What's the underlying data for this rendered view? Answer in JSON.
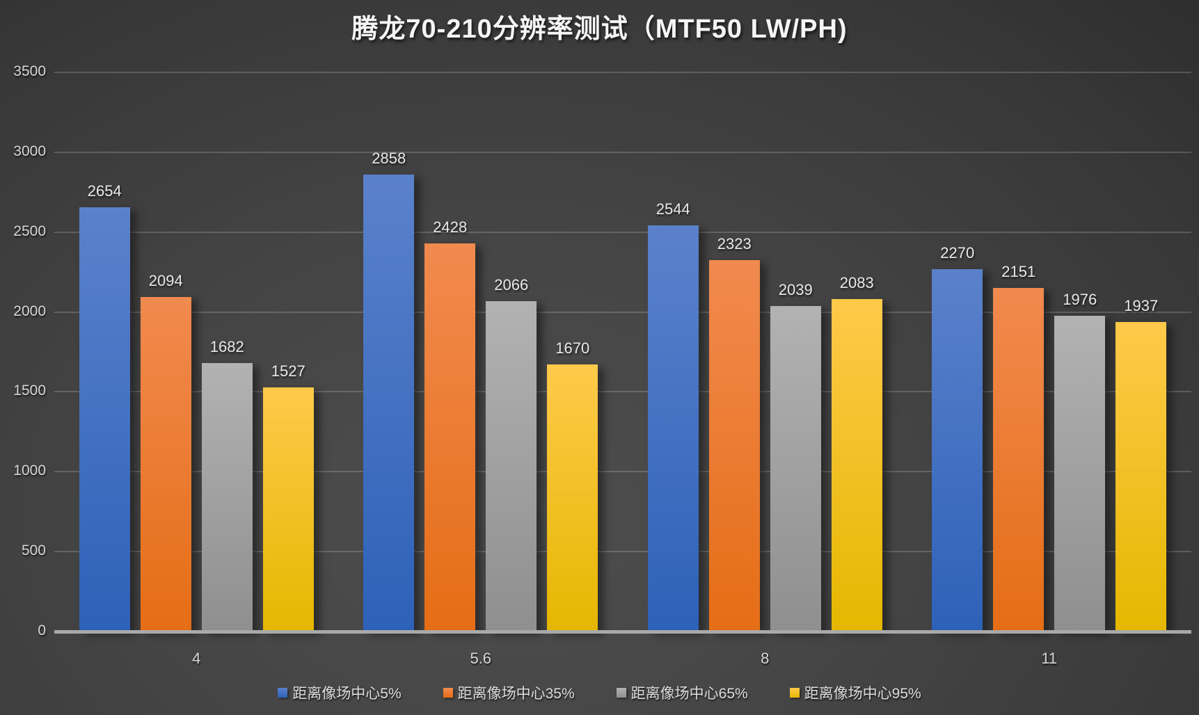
{
  "chart_data": {
    "type": "bar",
    "title": "腾龙70-210分辨率测试（MTF50 LW/PH)",
    "xlabel": "",
    "ylabel": "",
    "categories": [
      "4",
      "5.6",
      "8",
      "11"
    ],
    "series": [
      {
        "name": "距离像场中心5%",
        "color": "#4472c4",
        "color_top": "#5b81cb",
        "color_bottom": "#2d61b8",
        "values": [
          2654,
          2858,
          2544,
          2270
        ]
      },
      {
        "name": "距离像场中心35%",
        "color": "#ed7d31",
        "color_top": "#f18a4f",
        "color_bottom": "#e56d15",
        "values": [
          2094,
          2428,
          2323,
          2151
        ]
      },
      {
        "name": "距离像场中心65%",
        "color": "#a5a5a5",
        "color_top": "#b2b2b2",
        "color_bottom": "#8f8f8f",
        "values": [
          1682,
          2066,
          2039,
          1976
        ]
      },
      {
        "name": "距离像场中心95%",
        "color": "#ffc000",
        "color_top": "#ffc94a",
        "color_bottom": "#e5b700",
        "values": [
          1527,
          1670,
          2083,
          1937
        ]
      }
    ],
    "ylim": [
      0,
      3500
    ],
    "ytick_interval": 500,
    "yticks": [
      "0",
      "500",
      "1000",
      "1500",
      "2000",
      "2500",
      "3000",
      "3500"
    ],
    "grid": true,
    "legend_position": "bottom",
    "background": "#424242",
    "gridline_color": "#6b6b6b",
    "axis_line_color": "#a9a9a9",
    "text_color": "#d6d6d6"
  }
}
